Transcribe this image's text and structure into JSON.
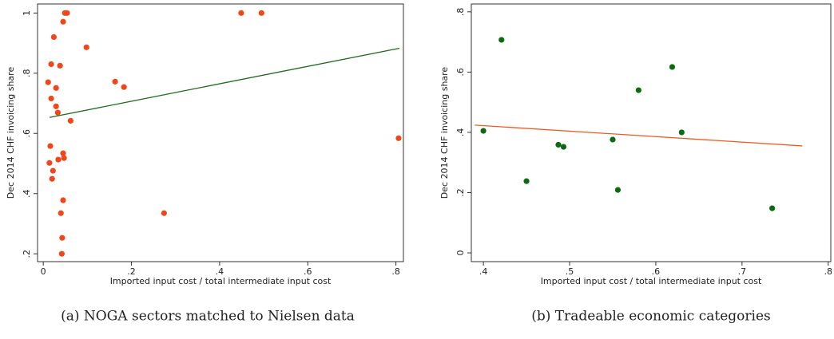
{
  "chart_data": [
    {
      "type": "scatter",
      "xlabel": "Imported input cost / total intermediate input cost",
      "ylabel": "Dec 2014 CHF invoicing share",
      "caption": "(a) NOGA sectors matched to Nielsen data",
      "color": "#f0471a",
      "x": [
        0.054,
        0.049,
        0.449,
        0.495,
        0.045,
        0.024,
        0.098,
        0.018,
        0.038,
        0.163,
        0.011,
        0.183,
        0.029,
        0.018,
        0.029,
        0.033,
        0.062,
        0.016,
        0.045,
        0.047,
        0.034,
        0.014,
        0.022,
        0.02,
        0.045,
        0.274,
        0.04,
        0.806,
        0.043,
        0.042
      ],
      "values": [
        1,
        1,
        1,
        1,
        0.971,
        0.92,
        0.886,
        0.83,
        0.825,
        0.772,
        0.77,
        0.754,
        0.751,
        0.716,
        0.69,
        0.669,
        0.642,
        0.558,
        0.534,
        0.518,
        0.513,
        0.502,
        0.476,
        0.449,
        0.378,
        0.335,
        0.335,
        0.584,
        0.253,
        0.2
      ],
      "fit_line": {
        "color": "#1e6b1e",
        "x": [
          0.014,
          0.808
        ],
        "y": [
          0.653,
          0.883
        ]
      },
      "xlim": [
        -0.013,
        0.817
      ],
      "ylim": [
        0.174,
        1.03
      ],
      "xticks": [
        0,
        {
          "value": 0.2,
          "label": ".2"
        },
        {
          "value": 0.4,
          "label": ".4"
        },
        {
          "value": 0.6,
          "label": ".6"
        },
        {
          "value": 0.8,
          "label": ".8"
        }
      ],
      "yticks": [
        {
          "value": 0.2,
          "label": ".2"
        },
        {
          "value": 0.4,
          "label": ".4"
        },
        {
          "value": 0.6,
          "label": ".6"
        },
        {
          "value": 0.8,
          "label": ".8"
        },
        1
      ]
    },
    {
      "type": "scatter",
      "xlabel": "Imported input cost / total intermediate input cost",
      "ylabel": "Dec 2014 CHF invoicing share",
      "caption": "(b) Tradeable economic categories",
      "color": "#0b6a12",
      "x": [
        0.4,
        0.421,
        0.45,
        0.487,
        0.493,
        0.55,
        0.556,
        0.58,
        0.619,
        0.63,
        0.735
      ],
      "values": [
        0.405,
        0.707,
        0.238,
        0.359,
        0.352,
        0.376,
        0.209,
        0.54,
        0.617,
        0.4,
        0.148
      ],
      "fit_line": {
        "color": "#f05a22",
        "x": [
          0.39,
          0.77
        ],
        "y": [
          0.424,
          0.355
        ]
      },
      "xlim": [
        0.386,
        0.803
      ],
      "ylim": [
        -0.029,
        0.826
      ],
      "xticks": [
        {
          "value": 0.4,
          "label": ".4"
        },
        {
          "value": 0.5,
          "label": ".5"
        },
        {
          "value": 0.6,
          "label": ".6"
        },
        {
          "value": 0.7,
          "label": ".7"
        },
        {
          "value": 0.8,
          "label": ".8"
        }
      ],
      "yticks": [
        0,
        {
          "value": 0.2,
          "label": ".2"
        },
        {
          "value": 0.4,
          "label": ".4"
        },
        {
          "value": 0.6,
          "label": ".6"
        },
        {
          "value": 0.8,
          "label": ".8"
        }
      ]
    }
  ]
}
